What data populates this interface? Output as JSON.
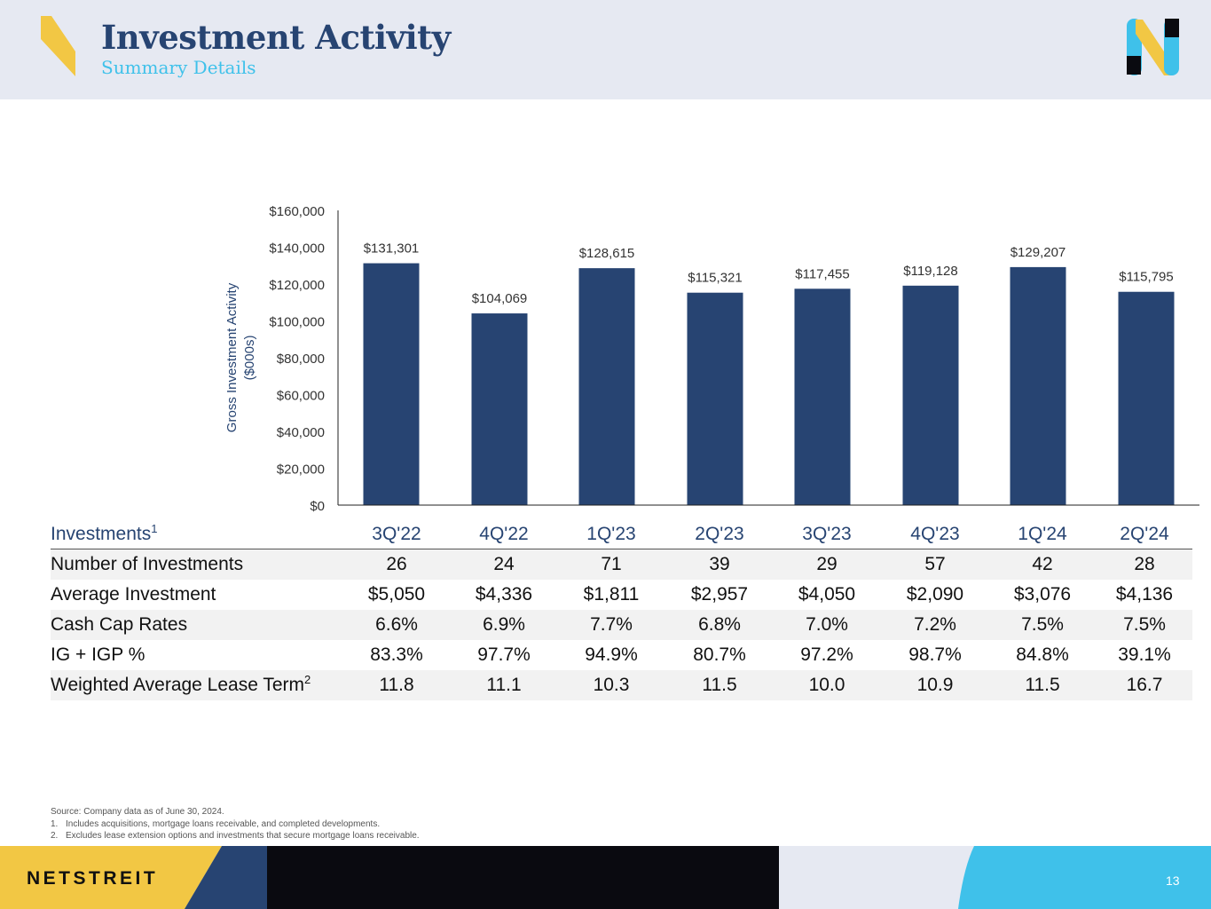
{
  "header": {
    "title": "Investment Activity",
    "subtitle": "Summary Details"
  },
  "colors": {
    "navy": "#274472",
    "light_blue": "#3fc1ea",
    "yellow": "#f2c744",
    "header_bg": "#e6e9f2",
    "black": "#0a0a10"
  },
  "chart_data": {
    "type": "bar",
    "categories": [
      "3Q'22",
      "4Q'22",
      "1Q'23",
      "2Q'23",
      "3Q'23",
      "4Q'23",
      "1Q'24",
      "2Q'24"
    ],
    "values": [
      131301,
      104069,
      128615,
      115321,
      117455,
      119128,
      129207,
      115795
    ],
    "data_labels": [
      "$131,301",
      "$104,069",
      "$128,615",
      "$115,321",
      "$117,455",
      "$119,128",
      "$129,207",
      "$115,795"
    ],
    "ylabel_line1": "Gross Investment Activity",
    "ylabel_line2": "($000s)",
    "ylim": [
      0,
      160000
    ],
    "yticks": [
      "$0",
      "$20,000",
      "$40,000",
      "$60,000",
      "$80,000",
      "$100,000",
      "$120,000",
      "$140,000",
      "$160,000"
    ],
    "bar_color": "#274472"
  },
  "table": {
    "header_label": "Investments",
    "header_sup": "1",
    "columns": [
      "3Q'22",
      "4Q'22",
      "1Q'23",
      "2Q'23",
      "3Q'23",
      "4Q'23",
      "1Q'24",
      "2Q'24"
    ],
    "rows": [
      {
        "label": "Number of Investments",
        "sup": "",
        "values": [
          "26",
          "24",
          "71",
          "39",
          "29",
          "57",
          "42",
          "28"
        ]
      },
      {
        "label": "Average Investment",
        "sup": "",
        "values": [
          "$5,050",
          "$4,336",
          "$1,811",
          "$2,957",
          "$4,050",
          "$2,090",
          "$3,076",
          "$4,136"
        ]
      },
      {
        "label": "Cash Cap Rates",
        "sup": "",
        "values": [
          "6.6%",
          "6.9%",
          "7.7%",
          "6.8%",
          "7.0%",
          "7.2%",
          "7.5%",
          "7.5%"
        ]
      },
      {
        "label": "IG + IGP %",
        "sup": "",
        "values": [
          "83.3%",
          "97.7%",
          "94.9%",
          "80.7%",
          "97.2%",
          "98.7%",
          "84.8%",
          "39.1%"
        ]
      },
      {
        "label": "Weighted Average Lease Term",
        "sup": "2",
        "values": [
          "11.8",
          "11.1",
          "10.3",
          "11.5",
          "10.0",
          "10.9",
          "11.5",
          "16.7"
        ]
      }
    ]
  },
  "footnotes": {
    "source": "Source: Company data as of June 30, 2024.",
    "items": [
      {
        "num": "1.",
        "text": "Includes acquisitions, mortgage loans receivable, and completed developments."
      },
      {
        "num": "2.",
        "text": "Excludes lease extension options and investments that secure mortgage loans receivable."
      }
    ]
  },
  "footer": {
    "brand": "NETSTREIT",
    "page_number": "13"
  }
}
